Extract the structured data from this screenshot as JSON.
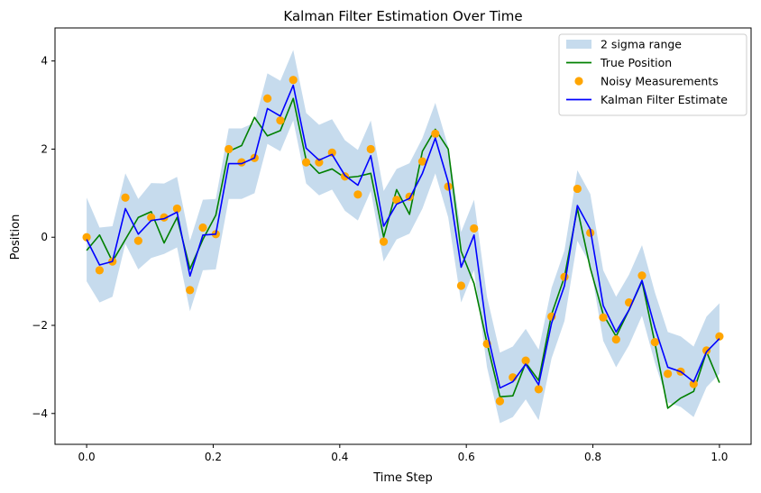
{
  "chart_data": {
    "type": "line",
    "title": "Kalman Filter Estimation Over Time",
    "xlabel": "Time Step",
    "ylabel": "Position",
    "xlim": [
      -0.05,
      1.05
    ],
    "ylim": [
      -4.7,
      4.75
    ],
    "xticks": [
      0.0,
      0.2,
      0.4,
      0.6,
      0.8,
      1.0
    ],
    "xtick_labels": [
      "0.0",
      "0.2",
      "0.4",
      "0.6",
      "0.8",
      "1.0"
    ],
    "yticks": [
      -4,
      -2,
      0,
      2,
      4
    ],
    "ytick_labels": [
      "−4",
      "−2",
      "0",
      "2",
      "4"
    ],
    "grid": false,
    "legend_position": "top-right",
    "x": [
      0.0,
      0.0204,
      0.0408,
      0.0612,
      0.0816,
      0.102,
      0.1224,
      0.1429,
      0.1633,
      0.1837,
      0.2041,
      0.2245,
      0.2449,
      0.2653,
      0.2857,
      0.3061,
      0.3265,
      0.3469,
      0.3673,
      0.3878,
      0.4082,
      0.4286,
      0.449,
      0.4694,
      0.4898,
      0.5102,
      0.5306,
      0.551,
      0.5714,
      0.5918,
      0.6122,
      0.6327,
      0.6531,
      0.6735,
      0.6939,
      0.7143,
      0.7347,
      0.7551,
      0.7755,
      0.7959,
      0.8163,
      0.8367,
      0.8571,
      0.8776,
      0.898,
      0.9184,
      0.9388,
      0.9592,
      0.9796,
      1.0
    ],
    "series": [
      {
        "name": "True Position",
        "kind": "line",
        "color": "#008000",
        "values": [
          -0.3,
          0.05,
          -0.55,
          -0.05,
          0.45,
          0.58,
          -0.13,
          0.45,
          -0.72,
          -0.05,
          0.5,
          1.95,
          2.08,
          2.72,
          2.3,
          2.42,
          3.15,
          1.75,
          1.45,
          1.55,
          1.35,
          1.38,
          1.45,
          0.0,
          1.08,
          0.52,
          1.95,
          2.45,
          2.0,
          -0.32,
          -1.05,
          -2.4,
          -3.62,
          -3.6,
          -2.85,
          -3.25,
          -1.75,
          -0.9,
          0.65,
          -0.7,
          -1.75,
          -2.25,
          -1.65,
          -1.0,
          -2.4,
          -3.88,
          -3.65,
          -3.5,
          -2.6,
          -3.3
        ]
      },
      {
        "name": "Noisy Measurements",
        "kind": "scatter",
        "color": "#ffa500",
        "values": [
          0.0,
          -0.75,
          -0.55,
          0.9,
          -0.08,
          0.45,
          0.45,
          0.65,
          -1.2,
          0.22,
          0.07,
          2.0,
          1.7,
          1.8,
          3.15,
          2.65,
          3.57,
          1.7,
          1.7,
          1.92,
          1.38,
          0.97,
          2.0,
          -0.1,
          0.85,
          0.92,
          1.72,
          2.35,
          1.15,
          -1.1,
          0.2,
          -2.42,
          -3.72,
          -3.18,
          -2.8,
          -3.45,
          -1.8,
          -0.9,
          1.1,
          0.1,
          -1.82,
          -2.32,
          -1.48,
          -0.87,
          -2.38,
          -3.1,
          -3.05,
          -3.33,
          -2.57,
          -2.25
        ]
      },
      {
        "name": "Kalman Filter Estimate",
        "kind": "line",
        "color": "#0000ff",
        "values": [
          -0.05,
          -0.63,
          -0.55,
          0.65,
          0.07,
          0.38,
          0.42,
          0.57,
          -0.88,
          0.05,
          0.07,
          1.67,
          1.67,
          1.8,
          2.92,
          2.75,
          3.45,
          2.02,
          1.75,
          1.88,
          1.4,
          1.18,
          1.85,
          0.25,
          0.75,
          0.88,
          1.45,
          2.25,
          1.25,
          -0.68,
          0.05,
          -2.15,
          -3.42,
          -3.28,
          -2.88,
          -3.35,
          -1.95,
          -1.1,
          0.72,
          0.18,
          -1.55,
          -2.15,
          -1.65,
          -0.98,
          -2.05,
          -2.95,
          -3.05,
          -3.28,
          -2.6,
          -2.3
        ]
      }
    ],
    "band": {
      "name": "2 sigma range",
      "color": "#c6dbed",
      "center_series": "Kalman Filter Estimate",
      "halfwidth": [
        0.95,
        0.85,
        0.8,
        0.8,
        0.8,
        0.85,
        0.8,
        0.8,
        0.8,
        0.8,
        0.8,
        0.8,
        0.8,
        0.8,
        0.8,
        0.8,
        0.8,
        0.8,
        0.8,
        0.8,
        0.8,
        0.8,
        0.8,
        0.8,
        0.8,
        0.8,
        0.8,
        0.8,
        0.8,
        0.8,
        0.8,
        0.8,
        0.8,
        0.8,
        0.8,
        0.8,
        0.8,
        0.8,
        0.8,
        0.8,
        0.8,
        0.8,
        0.8,
        0.8,
        0.8,
        0.8,
        0.8,
        0.8,
        0.8,
        0.8
      ]
    },
    "legend": [
      {
        "label": "2 sigma range",
        "symbol": "patch",
        "color": "#c6dbed"
      },
      {
        "label": "True Position",
        "symbol": "line",
        "color": "#008000"
      },
      {
        "label": "Noisy Measurements",
        "symbol": "marker",
        "color": "#ffa500"
      },
      {
        "label": "Kalman Filter Estimate",
        "symbol": "line",
        "color": "#0000ff"
      }
    ]
  }
}
